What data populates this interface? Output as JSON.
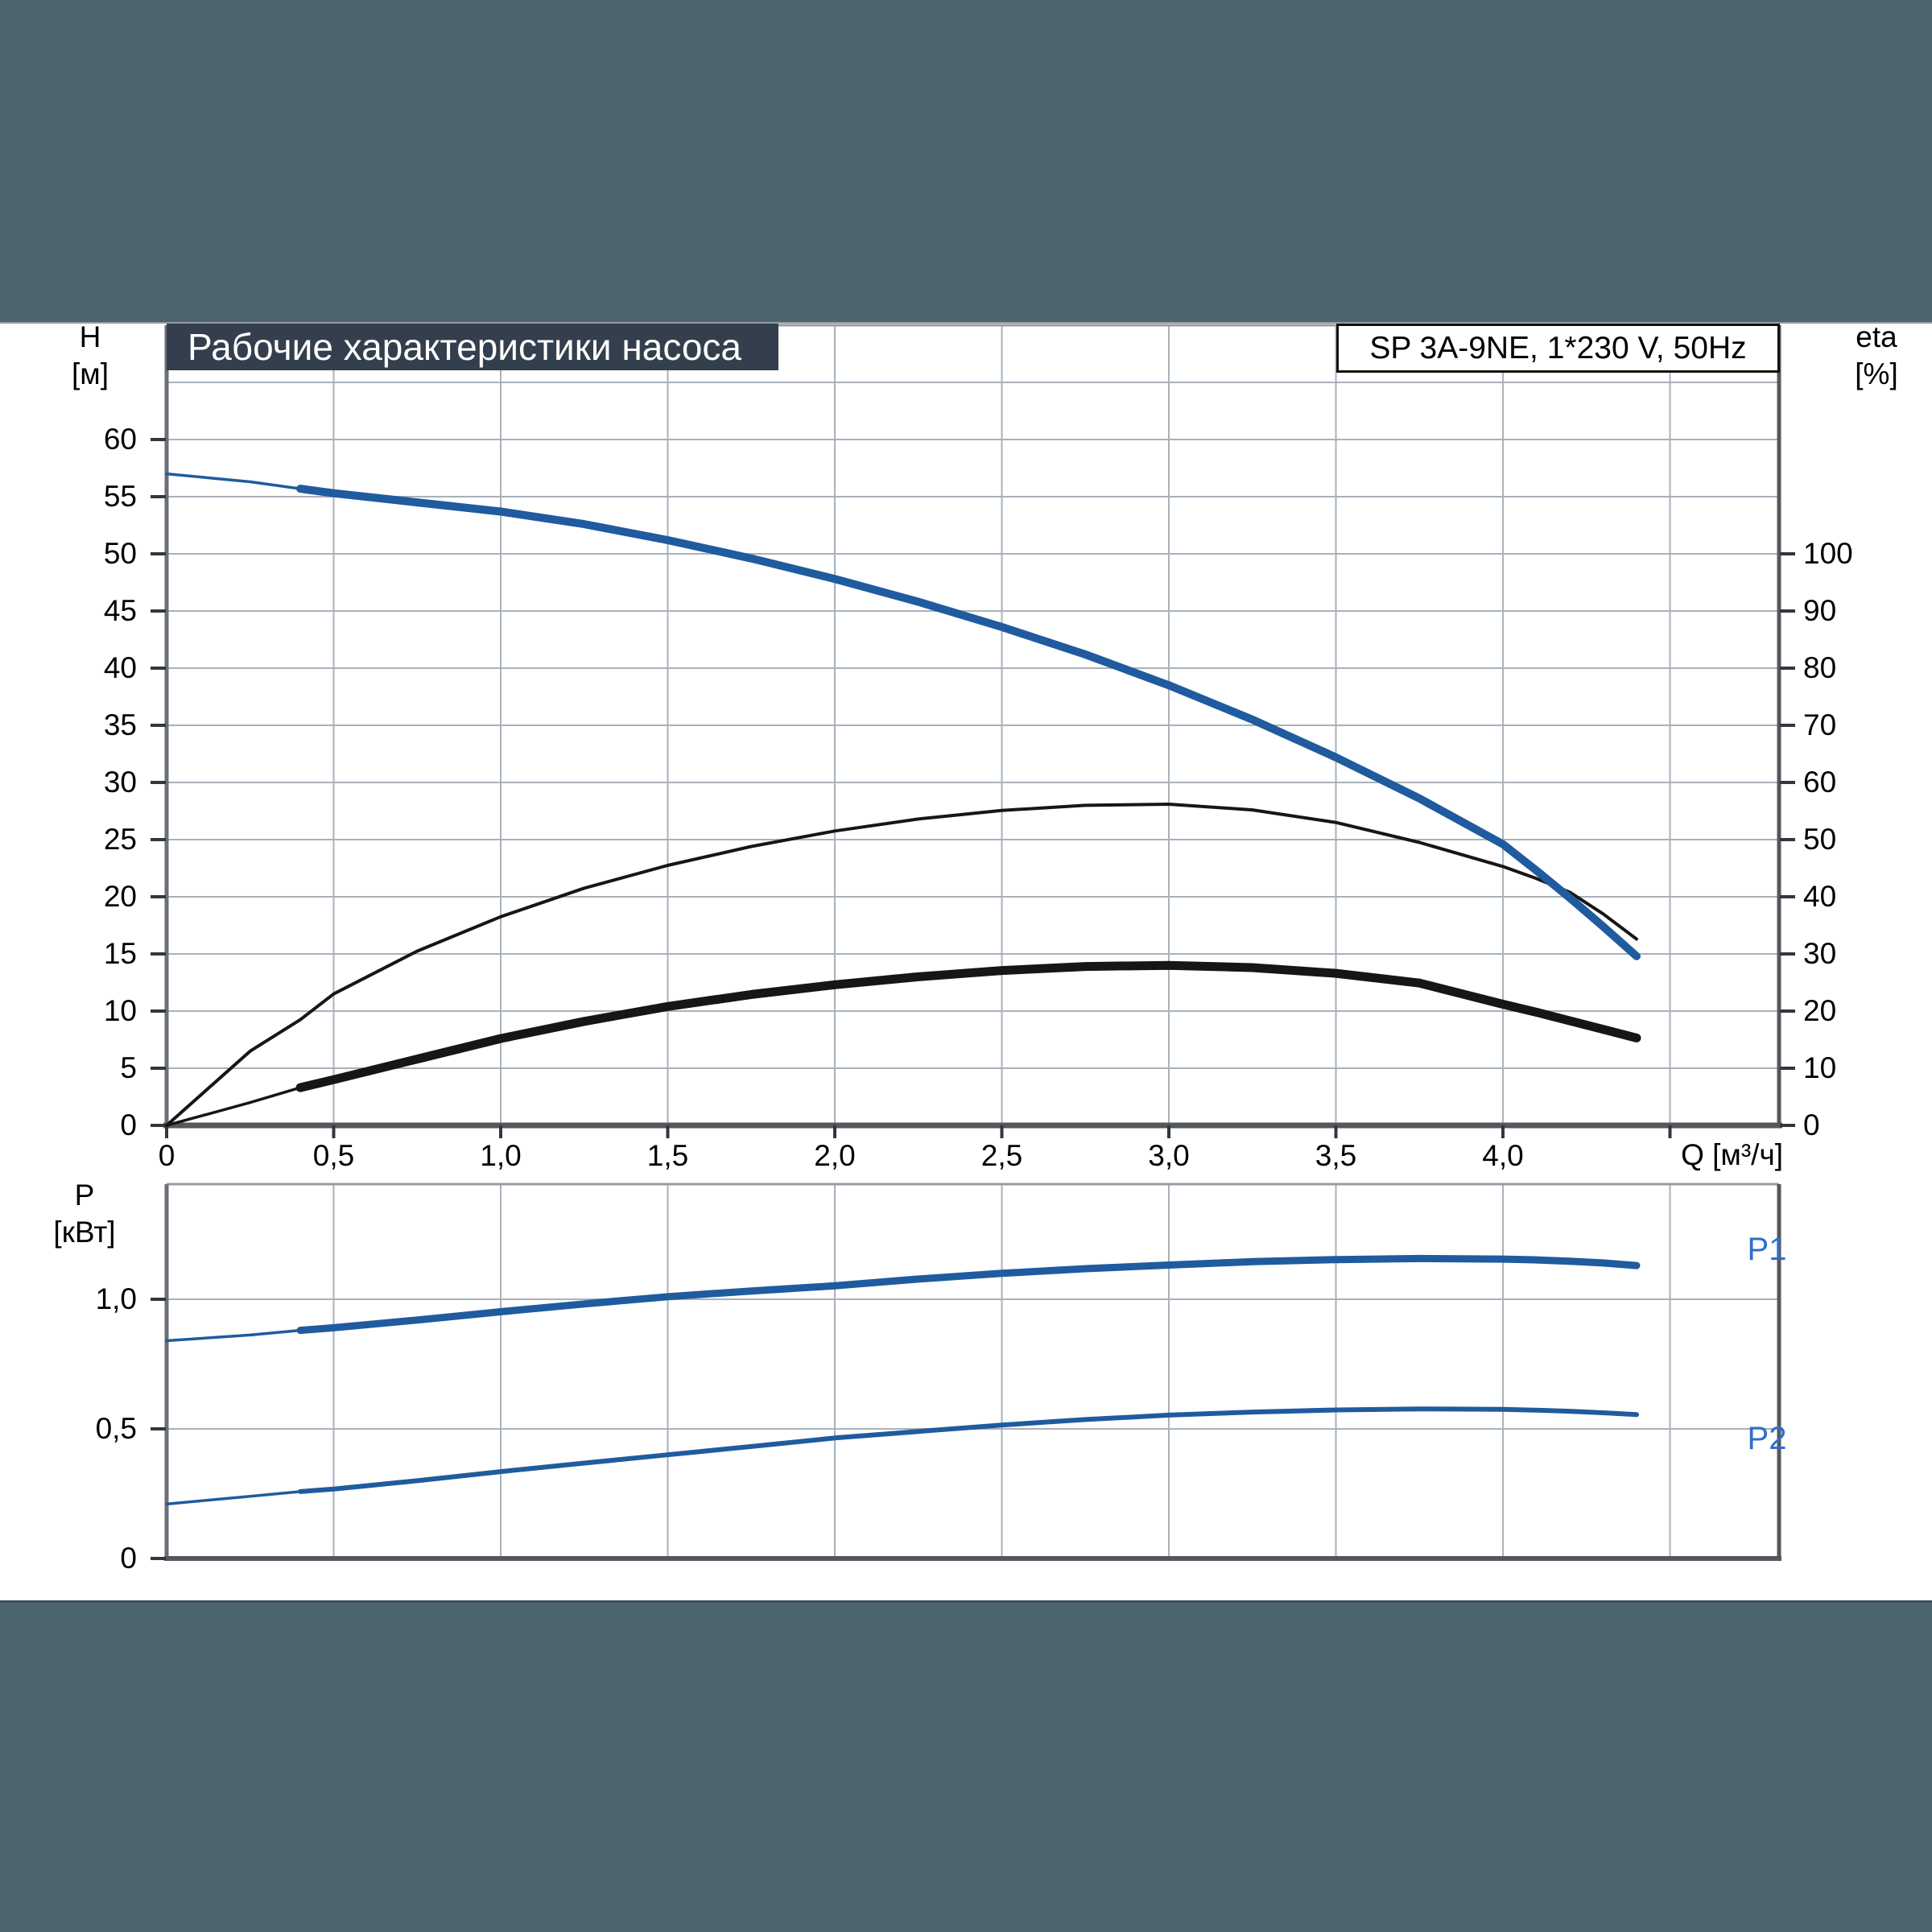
{
  "header": {
    "title": "Рабочие характеристики насоса",
    "pump_label": "SP 3A-9NE, 1*230 V, 50Hz"
  },
  "axes": {
    "head": {
      "name": "H",
      "unit": "[м]"
    },
    "eta": {
      "name": "eta",
      "unit": "[%]"
    },
    "power": {
      "name": "P",
      "unit": "[кВт]"
    },
    "flow": {
      "label": "Q [м³/ч]"
    }
  },
  "colors": {
    "band": "#4C656F",
    "band_edge": "#3E505A",
    "title_box": "#343F4D",
    "pump_box_border": "#111111",
    "curve_blue": "#1F5B9E",
    "curve_black": "#161616",
    "label_blue": "#2F6FC9",
    "grid": "#A9B1BA",
    "axis_dark": "#54585D",
    "axis_medium": "#6A6F75",
    "frame_light": "#979CA2",
    "tick": "#33373B",
    "text": "#000000"
  },
  "chart_data": [
    {
      "type": "line",
      "title": "Рабочие характеристики насоса",
      "x_axis": {
        "label": "Q [м³/ч]",
        "min": 0,
        "max": 4.83,
        "grid_step": 0.5,
        "tick_values": [
          0,
          0.5,
          1.0,
          1.5,
          2.0,
          2.5,
          3.0,
          3.5,
          4.0,
          4.5
        ],
        "tick_labels": [
          "0",
          "0,5",
          "1,0",
          "1,5",
          "2,0",
          "2,5",
          "3,0",
          "3,5",
          "4,0",
          ""
        ]
      },
      "y_left": {
        "label": "H [м]",
        "min": 0,
        "max": 70,
        "grid_step": 5,
        "tick_values": [
          0,
          5,
          10,
          15,
          20,
          25,
          30,
          35,
          40,
          45,
          50,
          55,
          60
        ],
        "tick_labels": [
          "0",
          "5",
          "10",
          "15",
          "20",
          "25",
          "30",
          "35",
          "40",
          "45",
          "50",
          "55",
          "60"
        ]
      },
      "y_right": {
        "label": "eta [%]",
        "min": 0,
        "max": 140,
        "grid_step": 10,
        "tick_values": [
          0,
          10,
          20,
          30,
          40,
          50,
          60,
          70,
          80,
          90,
          100
        ],
        "tick_labels": [
          "0",
          "10",
          "20",
          "30",
          "40",
          "50",
          "60",
          "70",
          "80",
          "90",
          "100"
        ]
      },
      "series": [
        {
          "name": "H",
          "axis": "left",
          "color": "curve_blue",
          "width": 10,
          "thin_lead_until": 0.4,
          "x": [
            0,
            0.25,
            0.4,
            0.5,
            0.75,
            1.0,
            1.25,
            1.5,
            1.75,
            2.0,
            2.25,
            2.5,
            2.75,
            3.0,
            3.25,
            3.5,
            3.75,
            4.0,
            4.1,
            4.2,
            4.3,
            4.4
          ],
          "y": [
            57.0,
            56.3,
            55.7,
            55.3,
            54.5,
            53.7,
            52.6,
            51.2,
            49.6,
            47.8,
            45.8,
            43.6,
            41.2,
            38.5,
            35.5,
            32.2,
            28.6,
            24.6,
            22.3,
            19.9,
            17.4,
            14.8
          ]
        },
        {
          "name": "eta",
          "axis": "right",
          "color": "curve_black",
          "width": 4,
          "x": [
            0,
            0.25,
            0.4,
            0.5,
            0.75,
            1.0,
            1.25,
            1.5,
            1.75,
            2.0,
            2.25,
            2.5,
            2.75,
            3.0,
            3.25,
            3.5,
            3.75,
            4.0,
            4.1,
            4.2,
            4.3,
            4.4
          ],
          "y": [
            0,
            13,
            18.5,
            23,
            30.5,
            36.5,
            41.5,
            45.5,
            48.8,
            51.5,
            53.6,
            55.1,
            56.0,
            56.2,
            55.2,
            53.0,
            49.5,
            45.3,
            43.2,
            40.8,
            37.0,
            32.6
          ]
        },
        {
          "name": "eta total",
          "axis": "right",
          "color": "curve_black",
          "width": 11,
          "thin_lead_until": 0.4,
          "x": [
            0,
            0.25,
            0.4,
            0.5,
            0.75,
            1.0,
            1.25,
            1.5,
            1.75,
            2.0,
            2.25,
            2.5,
            2.75,
            3.0,
            3.25,
            3.5,
            3.75,
            4.0,
            4.1,
            4.2,
            4.3,
            4.4
          ],
          "y": [
            0,
            4.0,
            6.6,
            8.0,
            11.6,
            15.2,
            18.2,
            20.8,
            22.9,
            24.6,
            26.0,
            27.1,
            27.8,
            28.0,
            27.6,
            26.6,
            24.9,
            21.2,
            19.8,
            18.3,
            16.8,
            15.3
          ]
        }
      ]
    },
    {
      "type": "line",
      "x_axis": {
        "label": "Q [м³/ч]",
        "min": 0,
        "max": 4.83,
        "grid_step": 0.5
      },
      "y_left": {
        "label": "P [кВт]",
        "min": 0,
        "max": 1.45,
        "grid_step": 0.5,
        "tick_values": [
          0,
          0.5,
          1.0
        ],
        "tick_labels": [
          "0",
          "0,5",
          "1,0"
        ]
      },
      "series": [
        {
          "name": "P1",
          "axis": "left",
          "color": "curve_blue",
          "width": 9,
          "thin_lead_until": 0.4,
          "x": [
            0,
            0.25,
            0.4,
            0.5,
            0.75,
            1.0,
            1.25,
            1.5,
            1.75,
            2.0,
            2.25,
            2.5,
            2.75,
            3.0,
            3.25,
            3.5,
            3.75,
            4.0,
            4.1,
            4.2,
            4.3,
            4.4
          ],
          "y": [
            0.84,
            0.862,
            0.88,
            0.89,
            0.92,
            0.952,
            0.982,
            1.01,
            1.032,
            1.052,
            1.078,
            1.1,
            1.118,
            1.132,
            1.145,
            1.153,
            1.157,
            1.155,
            1.152,
            1.147,
            1.14,
            1.13
          ]
        },
        {
          "name": "P2",
          "axis": "left",
          "color": "curve_blue",
          "width": 6,
          "thin_lead_until": 0.4,
          "x": [
            0,
            0.25,
            0.4,
            0.5,
            0.75,
            1.0,
            1.25,
            1.5,
            1.75,
            2.0,
            2.25,
            2.5,
            2.75,
            3.0,
            3.25,
            3.5,
            3.75,
            4.0,
            4.1,
            4.2,
            4.3,
            4.4
          ],
          "y": [
            0.21,
            0.24,
            0.258,
            0.268,
            0.3,
            0.335,
            0.368,
            0.4,
            0.432,
            0.465,
            0.49,
            0.515,
            0.536,
            0.553,
            0.565,
            0.573,
            0.577,
            0.575,
            0.572,
            0.568,
            0.562,
            0.555
          ]
        }
      ]
    }
  ]
}
